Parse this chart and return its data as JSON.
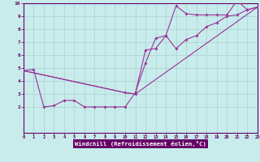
{
  "bg_color": "#c8ecec",
  "grid_color": "#aad0d0",
  "line_color": "#993399",
  "xlabel": "Windchill (Refroidissement éolien,°C)",
  "xlabel_bg": "#660066",
  "xlabel_fg": "#ffffff",
  "xlim": [
    0,
    23
  ],
  "ylim": [
    0,
    10
  ],
  "xticks": [
    0,
    1,
    2,
    3,
    4,
    5,
    6,
    7,
    8,
    9,
    10,
    11,
    12,
    13,
    14,
    15,
    16,
    17,
    18,
    19,
    20,
    21,
    22,
    23
  ],
  "yticks": [
    2,
    3,
    4,
    5,
    6,
    7,
    8,
    9,
    10
  ],
  "line1_x": [
    0,
    1,
    2,
    3,
    4,
    5,
    6,
    7,
    8,
    9,
    10,
    11,
    12,
    13,
    14,
    15,
    16,
    17,
    18,
    19,
    20,
    21,
    22,
    23
  ],
  "line1_y": [
    4.8,
    4.9,
    2.0,
    2.1,
    2.5,
    2.5,
    2.0,
    2.0,
    2.0,
    2.0,
    2.0,
    3.1,
    5.4,
    7.3,
    7.5,
    9.8,
    9.2,
    9.1,
    9.1,
    9.1,
    9.1,
    10.2,
    9.5,
    9.7
  ],
  "line2_x": [
    0,
    10,
    11,
    12,
    13,
    14,
    15,
    16,
    17,
    18,
    19,
    20,
    21,
    22,
    23
  ],
  "line2_y": [
    4.8,
    3.1,
    3.0,
    6.4,
    6.5,
    7.5,
    6.5,
    7.2,
    7.5,
    8.2,
    8.5,
    9.0,
    9.1,
    9.5,
    9.7
  ],
  "line3_x": [
    0,
    10,
    11,
    23
  ],
  "line3_y": [
    4.8,
    3.1,
    3.0,
    9.7
  ]
}
